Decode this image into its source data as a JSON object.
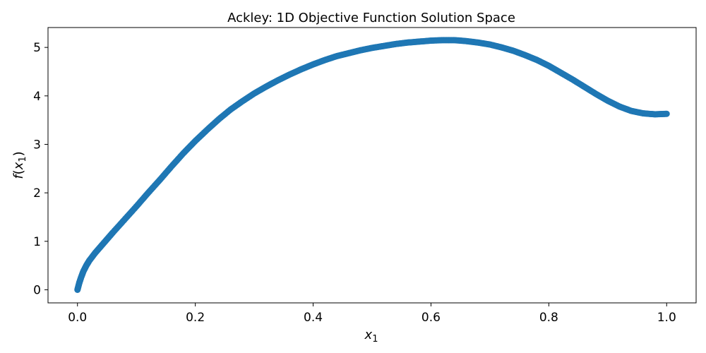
{
  "chart_data": {
    "type": "scatter",
    "title": "Ackley: 1D Objective Function Solution Space",
    "xlabel": {
      "base": "x",
      "sub": "1"
    },
    "ylabel": {
      "func": "f",
      "var": "x",
      "sub": "1"
    },
    "xlim": [
      -0.05,
      1.05
    ],
    "ylim": [
      -0.27,
      5.41
    ],
    "xticks": [
      0.0,
      0.2,
      0.4,
      0.6,
      0.8,
      1.0
    ],
    "xtick_labels": [
      "0.0",
      "0.2",
      "0.4",
      "0.6",
      "0.8",
      "1.0"
    ],
    "yticks": [
      0,
      1,
      2,
      3,
      4,
      5
    ],
    "ytick_labels": [
      "0",
      "1",
      "2",
      "3",
      "4",
      "5"
    ],
    "grid": false,
    "marker_color": "#1f77b4",
    "series": [
      {
        "x": [
          0.0,
          0.003,
          0.006,
          0.01,
          0.015,
          0.02,
          0.03,
          0.04,
          0.05,
          0.06,
          0.08,
          0.1,
          0.12,
          0.14,
          0.16,
          0.18,
          0.2,
          0.22,
          0.24,
          0.26,
          0.28,
          0.3,
          0.32,
          0.34,
          0.36,
          0.38,
          0.4,
          0.42,
          0.44,
          0.46,
          0.48,
          0.5,
          0.52,
          0.54,
          0.56,
          0.58,
          0.6,
          0.62,
          0.64,
          0.66,
          0.68,
          0.7,
          0.72,
          0.74,
          0.76,
          0.78,
          0.8,
          0.82,
          0.84,
          0.86,
          0.88,
          0.9,
          0.92,
          0.94,
          0.96,
          0.98,
          1.0
        ],
        "y": [
          0.0,
          0.14,
          0.25,
          0.38,
          0.5,
          0.6,
          0.76,
          0.9,
          1.04,
          1.18,
          1.45,
          1.72,
          2.0,
          2.27,
          2.55,
          2.82,
          3.07,
          3.3,
          3.52,
          3.72,
          3.89,
          4.05,
          4.19,
          4.32,
          4.44,
          4.55,
          4.65,
          4.74,
          4.82,
          4.88,
          4.94,
          4.99,
          5.03,
          5.07,
          5.1,
          5.12,
          5.14,
          5.15,
          5.15,
          5.13,
          5.1,
          5.06,
          5.0,
          4.93,
          4.84,
          4.74,
          4.62,
          4.48,
          4.34,
          4.19,
          4.04,
          3.9,
          3.78,
          3.69,
          3.64,
          3.62,
          3.63
        ]
      }
    ]
  }
}
